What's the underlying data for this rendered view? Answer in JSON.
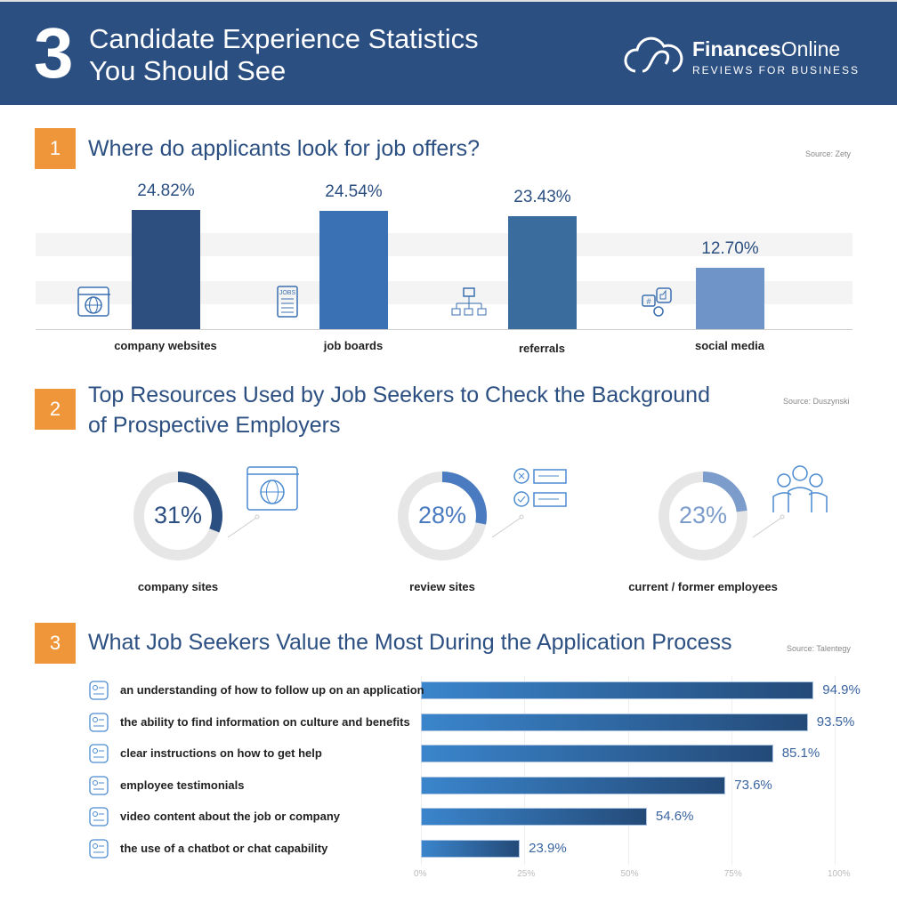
{
  "header": {
    "number": "3",
    "title_line1": "Candidate Experience Statistics",
    "title_line2": "You Should See",
    "brand_bold": "Finances",
    "brand_light": "Online",
    "brand_tagline": "REVIEWS FOR BUSINESS"
  },
  "sections": [
    {
      "number": "1",
      "title": "Where do applicants look for job offers?",
      "source": "Source: Zety"
    },
    {
      "number": "2",
      "title_line1": "Top Resources Used by Job Seekers to Check the Background",
      "title_line2": "of Prospective Employers",
      "source": "Source: Duszynski"
    },
    {
      "number": "3",
      "title": "What Job Seekers Value the Most During the Application Process",
      "source": "Source: Talentegy"
    }
  ],
  "chart_data": [
    {
      "type": "bar",
      "categories": [
        "company websites",
        "job boards",
        "referrals",
        "social media"
      ],
      "values": [
        24.82,
        24.54,
        23.43,
        12.7
      ],
      "labels": [
        "24.82%",
        "24.54%",
        "23.43%",
        "12.70%"
      ],
      "colors": [
        "#2c4f7f",
        "#3a70b4",
        "#3b6c9e",
        "#6f94c8"
      ],
      "icons": [
        "browser-globe-icon",
        "job-board-icon",
        "org-chart-icon",
        "social-media-icon"
      ],
      "ylim": [
        0,
        30
      ]
    },
    {
      "type": "pie",
      "style": "donut",
      "categories": [
        "company sites",
        "review sites",
        "current / former employees"
      ],
      "values": [
        31,
        28,
        23
      ],
      "labels": [
        "31%",
        "28%",
        "23%"
      ],
      "colors": [
        "#2c4f82",
        "#4a7bc0",
        "#7c9ccb"
      ],
      "icons": [
        "browser-globe-icon",
        "checklist-icon",
        "team-icon"
      ]
    },
    {
      "type": "bar",
      "orientation": "horizontal",
      "categories": [
        "an understanding of how to follow up on an application",
        "the ability to find information on culture and benefits",
        "clear instructions on how to get help",
        "employee testimonials",
        "video content about the job or company",
        "the use of a chatbot or chat capability"
      ],
      "values": [
        94.9,
        93.5,
        85.1,
        73.6,
        54.6,
        23.9
      ],
      "labels": [
        "94.9%",
        "93.5%",
        "85.1%",
        "73.6%",
        "54.6%",
        "23.9%"
      ],
      "xticks": [
        "0%",
        "25%",
        "50%",
        "75%",
        "100%"
      ],
      "xlim": [
        0,
        100
      ],
      "colors": [
        "#3a85cc",
        "#244a78"
      ]
    }
  ]
}
